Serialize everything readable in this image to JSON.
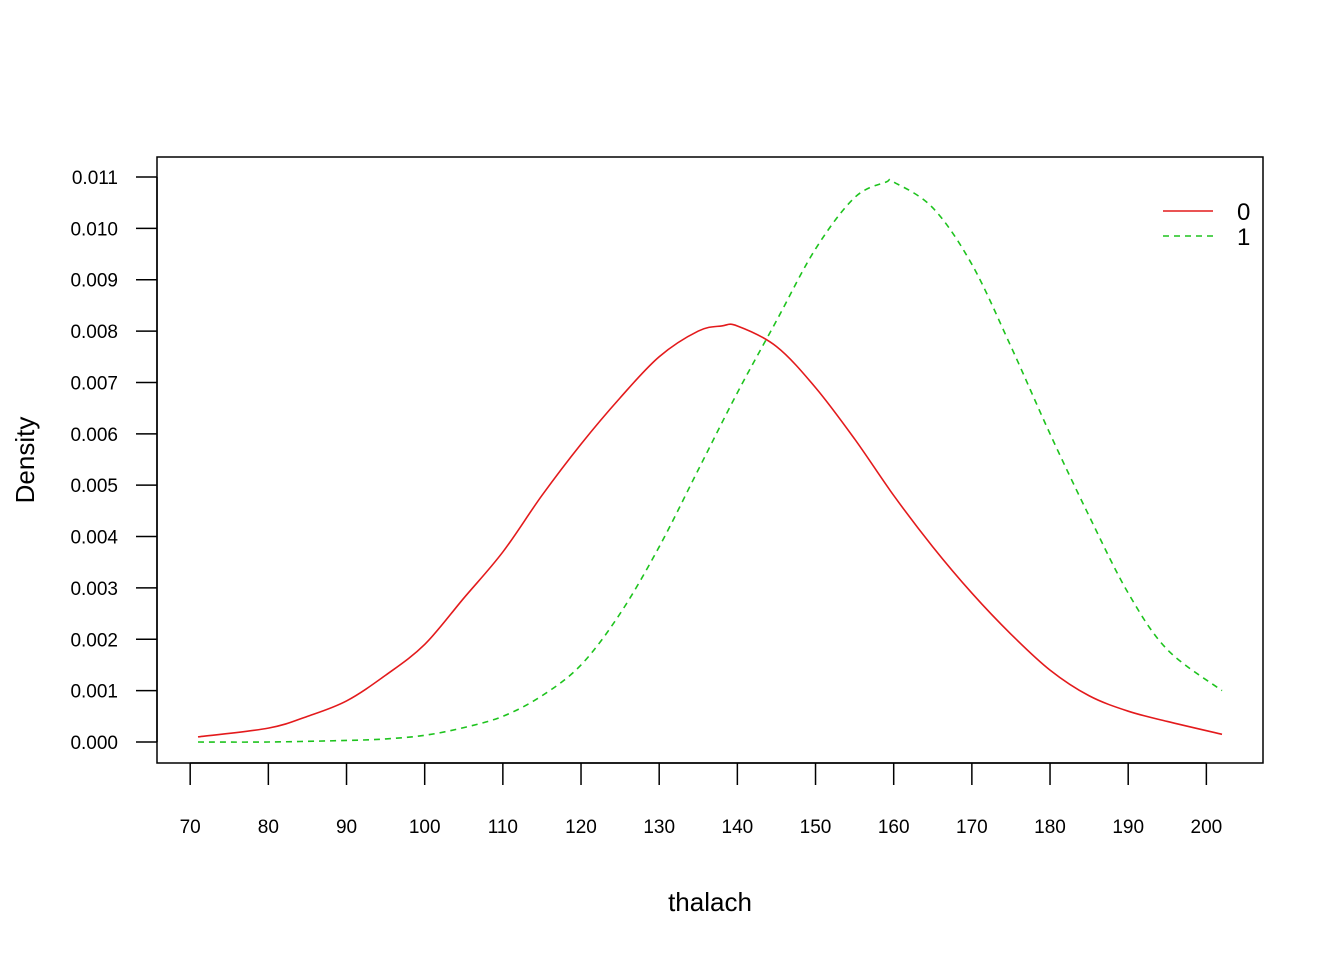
{
  "chart_data": {
    "type": "line",
    "title": "",
    "xlabel": "thalach",
    "ylabel": "Density",
    "xlim": [
      71,
      202
    ],
    "ylim": [
      0,
      0.011
    ],
    "x_ticks": [
      70,
      80,
      90,
      100,
      110,
      120,
      130,
      140,
      150,
      160,
      170,
      180,
      190,
      200
    ],
    "y_ticks": [
      "0.000",
      "0.001",
      "0.002",
      "0.003",
      "0.004",
      "0.005",
      "0.006",
      "0.007",
      "0.008",
      "0.009",
      "0.010",
      "0.011"
    ],
    "legend_position": "top-right",
    "grid": false,
    "series": [
      {
        "name": "0",
        "color": "#e31a1c",
        "line_style": "solid",
        "x": [
          71,
          80,
          85,
          90,
          95,
          100,
          105,
          110,
          115,
          120,
          125,
          130,
          135,
          138,
          140,
          145,
          150,
          155,
          160,
          165,
          170,
          175,
          180,
          185,
          190,
          195,
          202
        ],
        "y": [
          0.0001,
          0.00027,
          0.0005,
          0.0008,
          0.0013,
          0.0019,
          0.0028,
          0.0037,
          0.0048,
          0.0058,
          0.0067,
          0.0075,
          0.008,
          0.0081,
          0.0081,
          0.0077,
          0.0069,
          0.0059,
          0.0048,
          0.0038,
          0.0029,
          0.0021,
          0.0014,
          0.0009,
          0.0006,
          0.0004,
          0.00015
        ]
      },
      {
        "name": "1",
        "color": "#1ec31e",
        "line_style": "dashed",
        "x": [
          71,
          80,
          90,
          95,
          100,
          105,
          110,
          115,
          120,
          125,
          130,
          135,
          140,
          145,
          150,
          155,
          159,
          160,
          165,
          170,
          175,
          180,
          185,
          190,
          195,
          202
        ],
        "y": [
          0.0,
          0.0,
          3e-05,
          6e-05,
          0.00013,
          0.00028,
          0.0005,
          0.0009,
          0.0015,
          0.0025,
          0.0038,
          0.0053,
          0.0068,
          0.0082,
          0.0096,
          0.0106,
          0.0109,
          0.0109,
          0.0104,
          0.0093,
          0.0077,
          0.006,
          0.0044,
          0.0029,
          0.0018,
          0.001
        ]
      }
    ]
  }
}
